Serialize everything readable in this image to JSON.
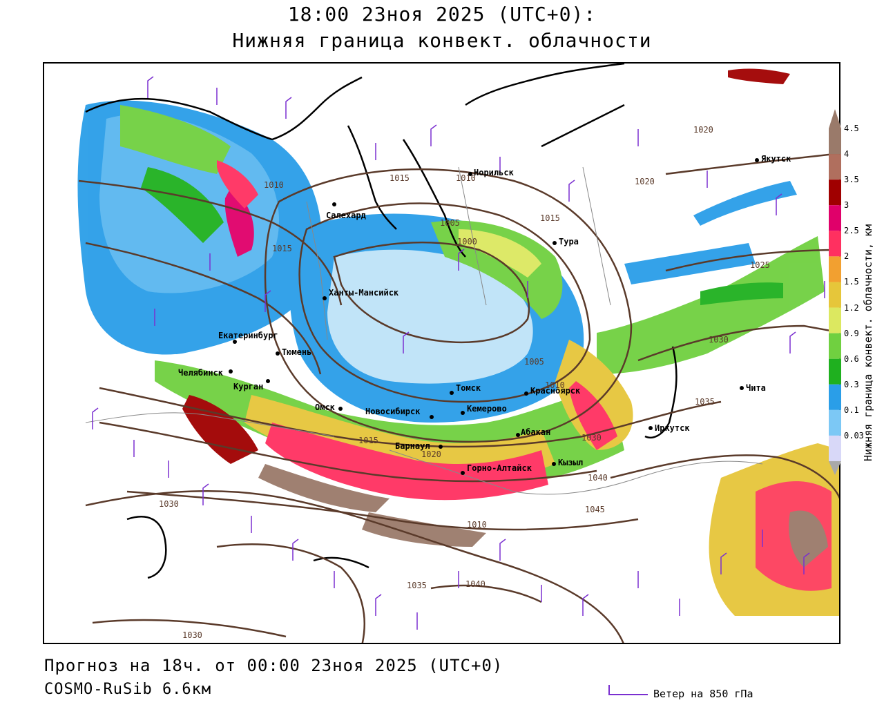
{
  "header": {
    "title_line1": "18:00 23ноя 2025 (UTC+0):",
    "title_line2": "Нижняя граница конвект. облачности"
  },
  "footer": {
    "forecast": "Прогноз на 18ч. от 00:00 23ноя 2025 (UTC+0)",
    "model": "COSMO-RuSib 6.6км",
    "wind_legend": "Ветер на 850 гПа"
  },
  "colorbar": {
    "title": "Нижняя граница конвект. облачности, км",
    "ticks": [
      "4.5",
      "4",
      "3.5",
      "3",
      "2.5",
      "2",
      "1.5",
      "1.2",
      "0.9",
      "0.6",
      "0.3",
      "0.1",
      "0.03"
    ],
    "colors": [
      "#9a7a6a",
      "#b06f5e",
      "#a00000",
      "#e0006a",
      "#ff3060",
      "#f2a030",
      "#e6c63a",
      "#dce860",
      "#70d040",
      "#1fb01f",
      "#2a9ee8",
      "#7cc8f5",
      "#d8d8f8"
    ]
  },
  "cities": [
    {
      "name": "Салехард"
    },
    {
      "name": "Норильск"
    },
    {
      "name": "Якутск"
    },
    {
      "name": "Тура"
    },
    {
      "name": "Ханты-Мансийск"
    },
    {
      "name": "Екатеринбург"
    },
    {
      "name": "Тюмень"
    },
    {
      "name": "Челябинск"
    },
    {
      "name": "Курган"
    },
    {
      "name": "Омск"
    },
    {
      "name": "Новосибирск"
    },
    {
      "name": "Томск"
    },
    {
      "name": "Кемерово"
    },
    {
      "name": "Красноярск"
    },
    {
      "name": "Абакан"
    },
    {
      "name": "Иркутск"
    },
    {
      "name": "Чита"
    },
    {
      "name": "Барнаул"
    },
    {
      "name": "Кызыл"
    },
    {
      "name": "Горно-Алтайск"
    }
  ],
  "isobar_labels": [
    "1010",
    "1015",
    "1010",
    "1005",
    "1000",
    "1015",
    "1020",
    "1020",
    "1025",
    "1030",
    "1005",
    "1010",
    "1015",
    "1020",
    "1030",
    "1035",
    "1040",
    "1045",
    "1030",
    "1035",
    "1040",
    "1030",
    "1015",
    "1010"
  ],
  "colors": {
    "isobar": "#5a3a2a",
    "coast": "#000000",
    "border": "#888888",
    "wind_barb": "#7a2fd0"
  }
}
